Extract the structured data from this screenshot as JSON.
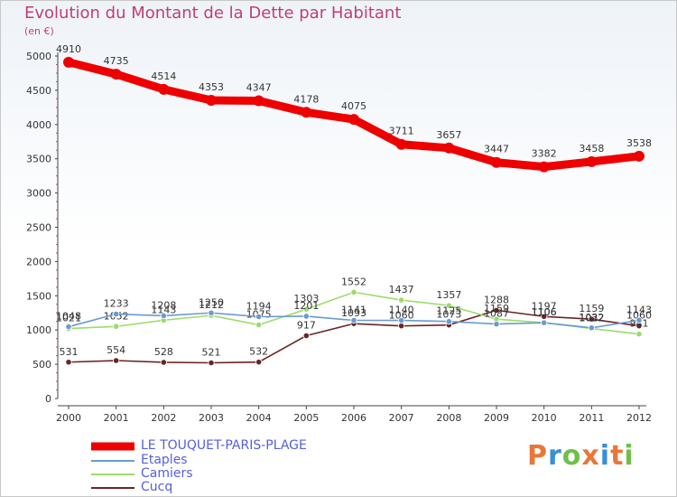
{
  "title": "Evolution du Montant de la Dette par Habitant",
  "subtitle": "(en €)",
  "logo": {
    "text": "Proxiti",
    "colors": [
      "#e8773a",
      "#3a8fd4",
      "#6fbf4a",
      "#e8773a",
      "#3a8fd4",
      "#e8773a",
      "#6fbf4a"
    ]
  },
  "chart_data": {
    "type": "line",
    "x": [
      "2000",
      "2001",
      "2002",
      "2003",
      "2004",
      "2005",
      "2006",
      "2007",
      "2008",
      "2009",
      "2010",
      "2011",
      "2012"
    ],
    "ylim": [
      0,
      5000
    ],
    "yticks": [
      "0",
      "500",
      "1000",
      "1500",
      "2000",
      "2500",
      "3000",
      "3500",
      "4000",
      "4500",
      "5000"
    ],
    "grid": false,
    "legend_position": "bottom-left",
    "series": [
      {
        "name": "LE TOUQUET-PARIS-PLAGE",
        "color": "#ee0000",
        "values": [
          4910,
          4735,
          4514,
          4353,
          4347,
          4178,
          4075,
          3711,
          3657,
          3447,
          3382,
          3458,
          3538
        ]
      },
      {
        "name": "Etaples",
        "color": "#6a9ad0",
        "values": [
          1048,
          1233,
          1208,
          1250,
          1194,
          1201,
          1141,
          1140,
          1125,
          1087,
          1106,
          1032,
          1143
        ]
      },
      {
        "name": "Camiers",
        "color": "#9bdc6a",
        "values": [
          1021,
          1052,
          1143,
          1212,
          1075,
          1303,
          1552,
          1437,
          1357,
          1159,
          1106,
          1022,
          941
        ]
      },
      {
        "name": "Cucq",
        "color": "#6b2424",
        "values": [
          531,
          554,
          528,
          521,
          532,
          917,
          1093,
          1060,
          1073,
          1288,
          1197,
          1159,
          1060
        ]
      }
    ]
  }
}
